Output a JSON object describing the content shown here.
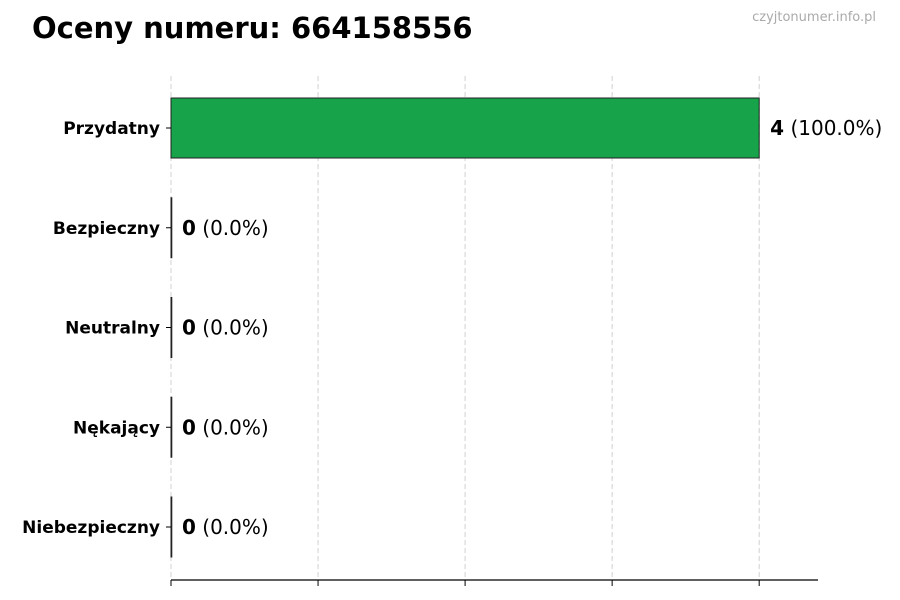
{
  "title": "Oceny numeru: 664158556",
  "watermark": "czyjtonumer.info.pl",
  "chart_data": {
    "type": "bar",
    "orientation": "horizontal",
    "title": "Oceny numeru: 664158556",
    "categories": [
      "Przydatny",
      "Bezpieczny",
      "Neutralny",
      "Nękający",
      "Niebezpieczny"
    ],
    "values": [
      4,
      0,
      0,
      0,
      0
    ],
    "percent_labels": [
      "(100.0%)",
      "(0.0%)",
      "(0.0%)",
      "(0.0%)",
      "(0.0%)"
    ],
    "xlim": [
      0,
      4.4
    ],
    "xticks": [
      0,
      1,
      2,
      3,
      4
    ],
    "xtick_labels_shown": false,
    "grid": "x dashed",
    "legend": "none",
    "bar_color": "#17a34a",
    "xlabel": "",
    "ylabel": ""
  }
}
